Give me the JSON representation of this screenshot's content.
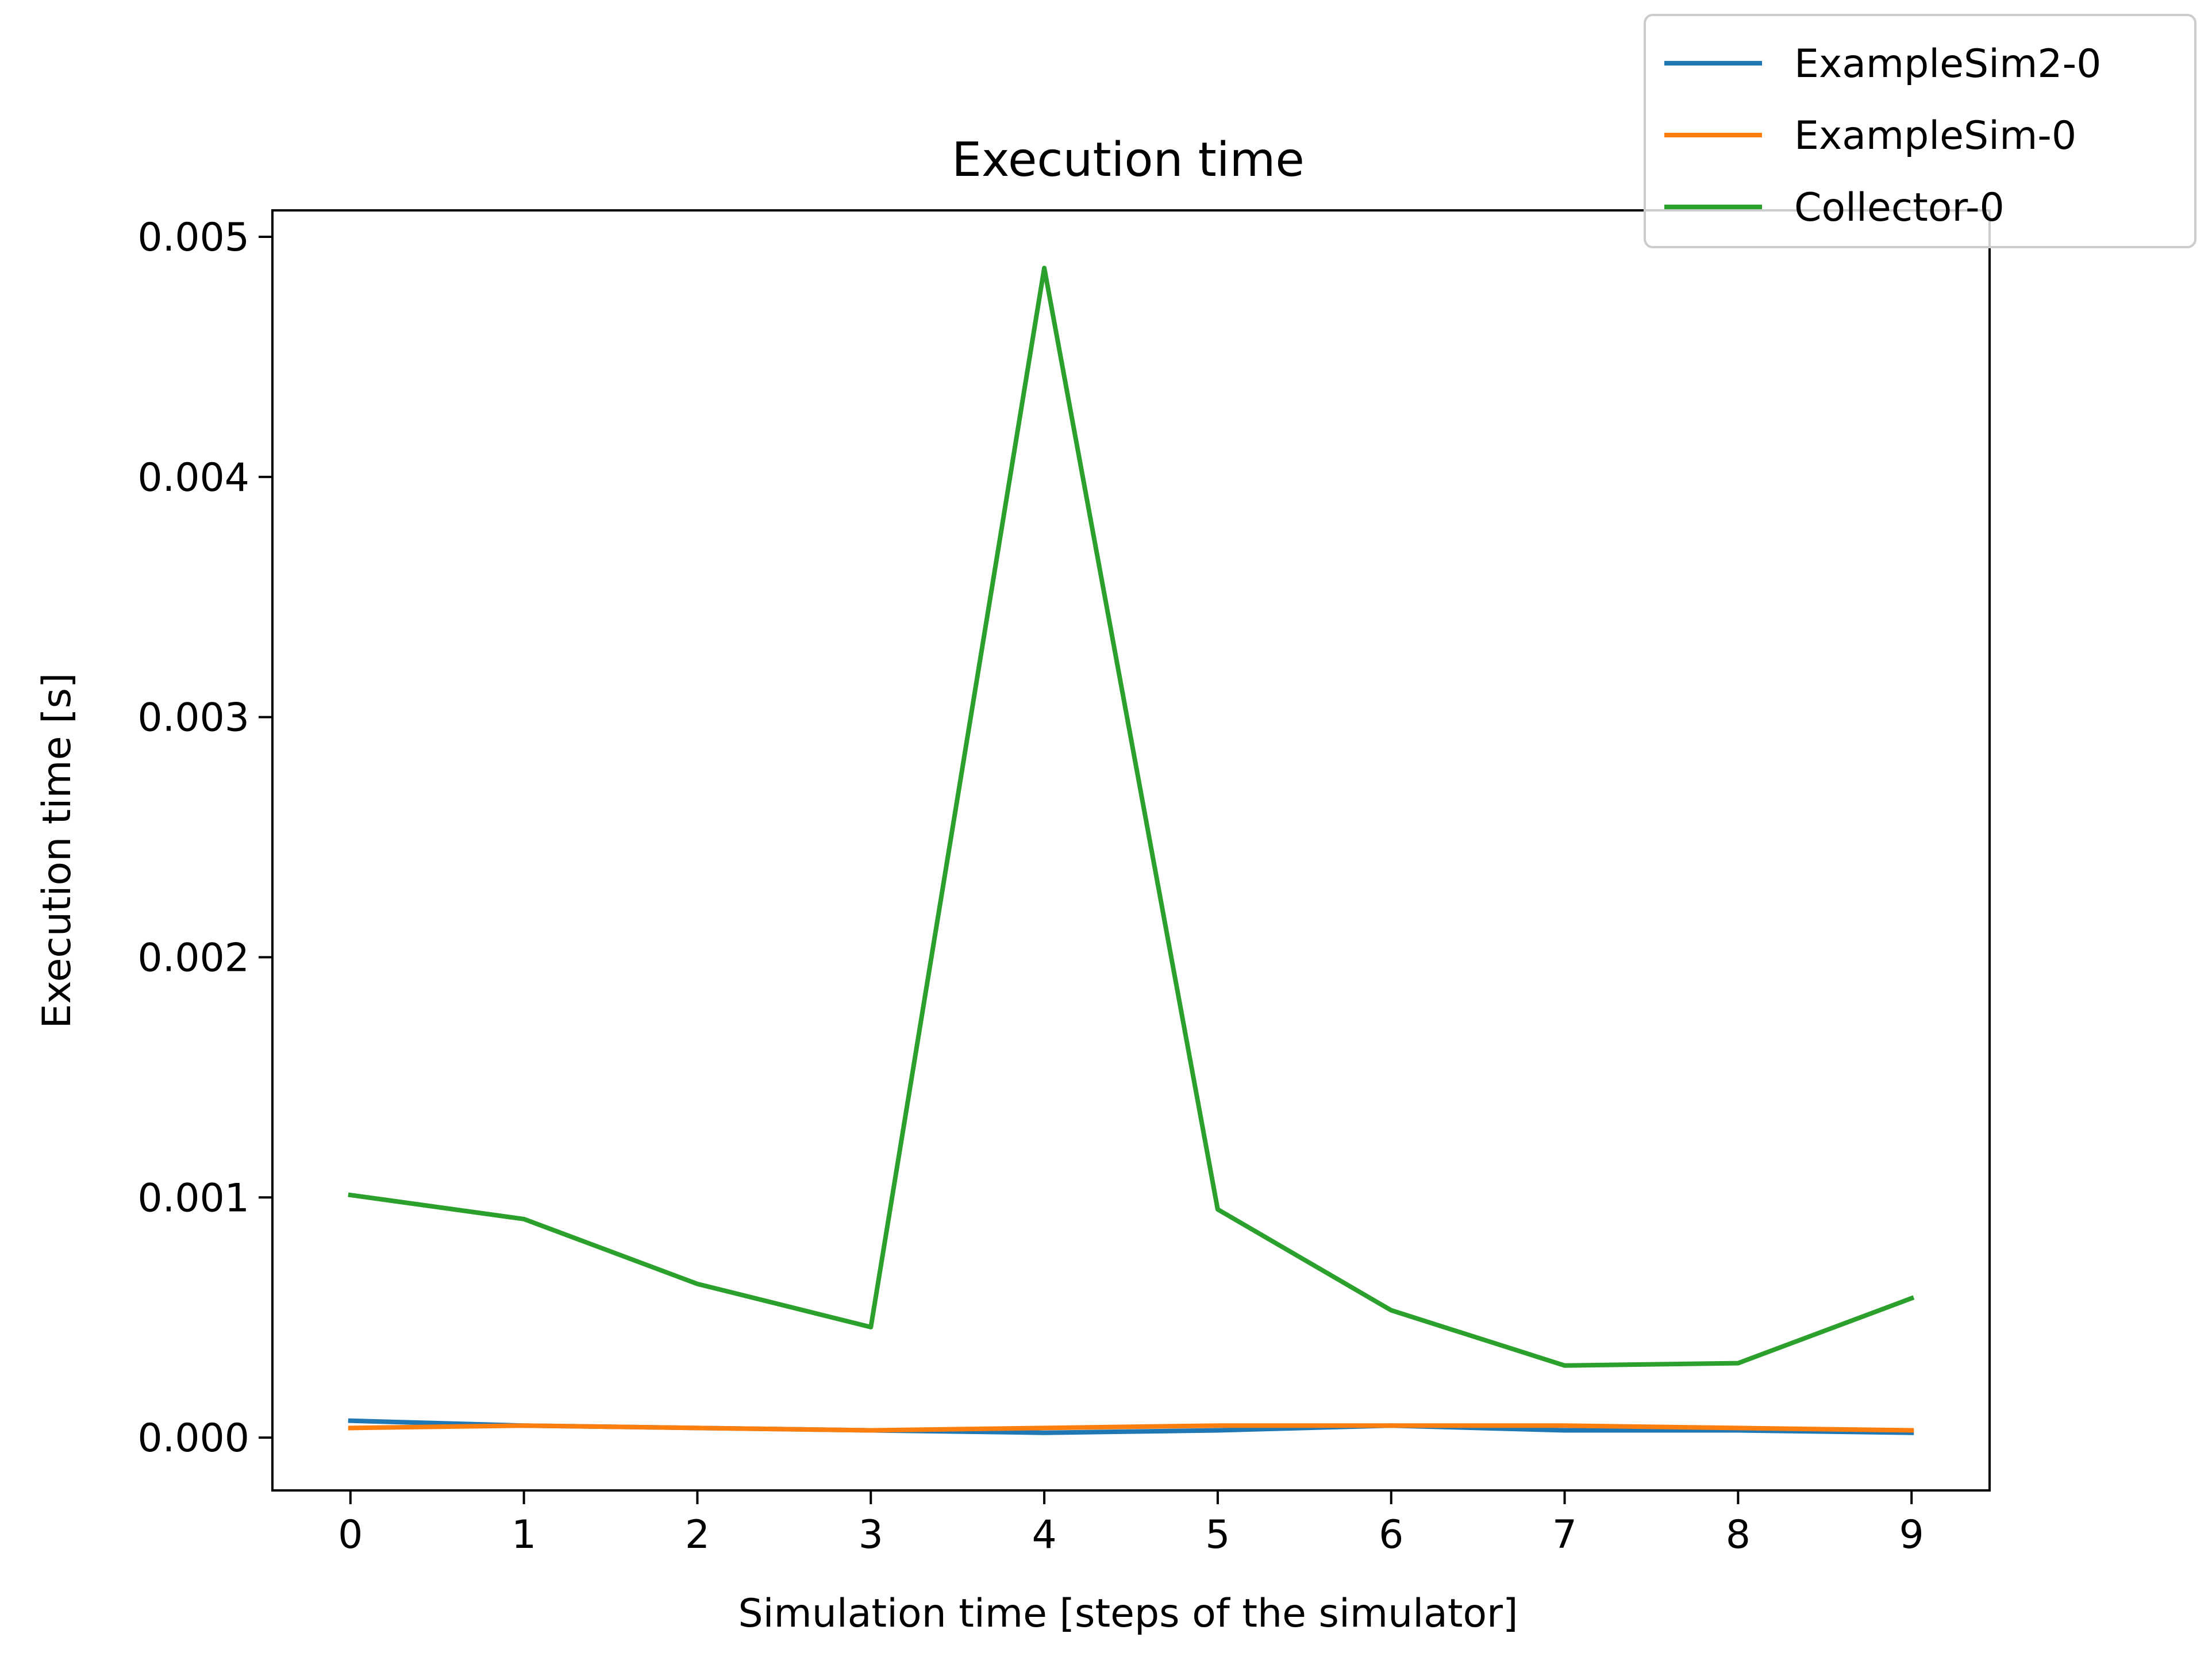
{
  "chart_data": {
    "type": "line",
    "title": "Execution time",
    "xlabel": "Simulation time [steps of the simulator]",
    "ylabel": "Execution time [s]",
    "x": [
      0,
      1,
      2,
      3,
      4,
      5,
      6,
      7,
      8,
      9
    ],
    "xticks": [
      "0",
      "1",
      "2",
      "3",
      "4",
      "5",
      "6",
      "7",
      "8",
      "9"
    ],
    "yticks": [
      "0.000",
      "0.001",
      "0.002",
      "0.003",
      "0.004",
      "0.005"
    ],
    "xlim": [
      -0.45,
      9.45
    ],
    "ylim": [
      -0.00022,
      0.00511
    ],
    "grid": false,
    "legend_position": "top-right",
    "series": [
      {
        "name": "ExampleSim2-0",
        "color": "#1f77b4",
        "values": [
          7e-05,
          5e-05,
          4e-05,
          3e-05,
          2e-05,
          3e-05,
          5e-05,
          3e-05,
          3e-05,
          2e-05
        ]
      },
      {
        "name": "ExampleSim-0",
        "color": "#ff7f0e",
        "values": [
          4e-05,
          5e-05,
          4e-05,
          3e-05,
          4e-05,
          5e-05,
          5e-05,
          5e-05,
          4e-05,
          3e-05
        ]
      },
      {
        "name": "Collector-0",
        "color": "#2ca02c",
        "values": [
          0.00101,
          0.00091,
          0.00064,
          0.00046,
          0.00487,
          0.00095,
          0.00053,
          0.0003,
          0.00031,
          0.00058
        ]
      }
    ]
  }
}
